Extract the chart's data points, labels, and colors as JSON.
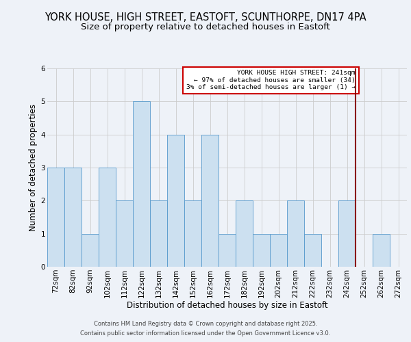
{
  "title": "YORK HOUSE, HIGH STREET, EASTOFT, SCUNTHORPE, DN17 4PA",
  "subtitle": "Size of property relative to detached houses in Eastoft",
  "xlabel": "Distribution of detached houses by size in Eastoft",
  "ylabel": "Number of detached properties",
  "categories": [
    "72sqm",
    "82sqm",
    "92sqm",
    "102sqm",
    "112sqm",
    "122sqm",
    "132sqm",
    "142sqm",
    "152sqm",
    "162sqm",
    "172sqm",
    "182sqm",
    "192sqm",
    "202sqm",
    "212sqm",
    "222sqm",
    "232sqm",
    "242sqm",
    "252sqm",
    "262sqm",
    "272sqm"
  ],
  "values": [
    3,
    3,
    1,
    3,
    2,
    5,
    2,
    4,
    2,
    4,
    1,
    2,
    1,
    1,
    2,
    1,
    0,
    2,
    0,
    1,
    0
  ],
  "bar_color": "#cce0f0",
  "bar_edge_color": "#5599cc",
  "vline_index": 17,
  "vline_color": "#8b0000",
  "ylim": [
    0,
    6
  ],
  "yticks": [
    0,
    1,
    2,
    3,
    4,
    5,
    6
  ],
  "annotation_title": "YORK HOUSE HIGH STREET: 241sqm",
  "annotation_line1": "← 97% of detached houses are smaller (34)",
  "annotation_line2": "3% of semi-detached houses are larger (1) →",
  "annotation_box_color": "#ffffff",
  "annotation_border_color": "#cc0000",
  "footer1": "Contains HM Land Registry data © Crown copyright and database right 2025.",
  "footer2": "Contains public sector information licensed under the Open Government Licence v3.0.",
  "background_color": "#eef2f8",
  "grid_color": "#cccccc",
  "title_fontsize": 10.5,
  "subtitle_fontsize": 9.5,
  "axis_label_fontsize": 8.5,
  "tick_fontsize": 7.5,
  "footer_fontsize": 6.0
}
